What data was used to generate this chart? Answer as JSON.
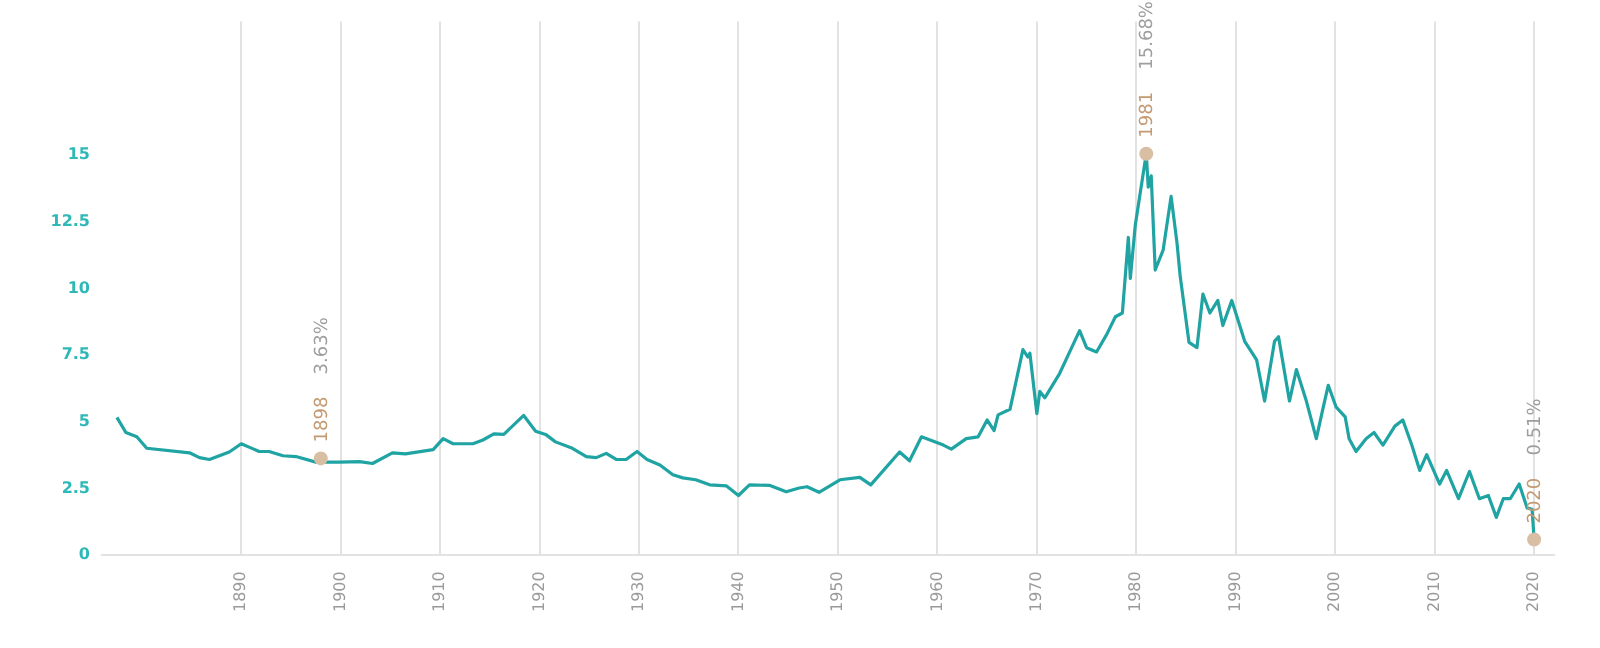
{
  "chart_data": {
    "type": "line",
    "color": "#1fa3a3",
    "marker": "none",
    "grid": "x",
    "x": [
      1877.5,
      1878.4,
      1879.5,
      1880.5,
      1884.8,
      1885.8,
      1886.8,
      1888.8,
      1890,
      1891.8,
      1892.8,
      1894.2,
      1895.5,
      1897.5,
      1899.9,
      1901.9,
      1903.2,
      1905.2,
      1906.5,
      1909.3,
      1910.3,
      1911.3,
      1913.3,
      1914.3,
      1915.4,
      1916.4,
      1918.4,
      1919.6,
      1920.6,
      1921.6,
      1923.3,
      1924.7,
      1925.7,
      1926.7,
      1927.7,
      1928.7,
      1929.8,
      1930.8,
      1932.1,
      1933.4,
      1934.4,
      1935.7,
      1937.1,
      1938.8,
      1940,
      1941.1,
      1943.1,
      1944.8,
      1946.1,
      1946.9,
      1948.1,
      1950.2,
      1952.2,
      1953.3,
      1956.2,
      1957.2,
      1958.4,
      1960.6,
      1961.4,
      1962.9,
      1964.1,
      1965,
      1965.7,
      1966.1,
      1967.3,
      1968.6,
      1969.1,
      1969.3,
      1970,
      1970.3,
      1970.8,
      1972.3,
      1973.3,
      1974.3,
      1975,
      1976,
      1977,
      1977.9,
      1978.6,
      1979.2,
      1979.4,
      1979.9,
      1981,
      1981.2,
      1981.5,
      1981.9,
      1982.7,
      1983.5,
      1984.1,
      1984.4,
      1985.3,
      1986.1,
      1986.7,
      1987.4,
      1988.2,
      1988.7,
      1989.6,
      1990,
      1990.9,
      1992.1,
      1992.9,
      1993.9,
      1994.3,
      1995.4,
      1996.1,
      1997.1,
      1998.1,
      1998.8,
      1999.3,
      2000.1,
      2001,
      2001.4,
      2002.1,
      2003.1,
      2003.9,
      2004.8,
      2006,
      2006.8,
      2007.7,
      2008.5,
      2009.2,
      2010.5,
      2011.2,
      2012.4,
      2013.5,
      2014.5,
      2015.4,
      2016.2,
      2016.9,
      2017.6,
      2018.5,
      2019.3,
      2019.8,
      2020
    ],
    "values": [
      5.17,
      4.6,
      4.44,
      4.01,
      3.84,
      3.66,
      3.59,
      3.87,
      4.18,
      3.89,
      3.89,
      3.73,
      3.7,
      3.49,
      3.49,
      3.51,
      3.44,
      3.84,
      3.8,
      3.96,
      4.37,
      4.18,
      4.18,
      4.32,
      4.55,
      4.53,
      5.24,
      4.65,
      4.53,
      4.25,
      4.01,
      3.7,
      3.66,
      3.82,
      3.59,
      3.59,
      3.89,
      3.59,
      3.38,
      3.02,
      2.9,
      2.83,
      2.64,
      2.6,
      2.24,
      2.64,
      2.62,
      2.38,
      2.52,
      2.57,
      2.36,
      2.83,
      2.92,
      2.64,
      3.87,
      3.54,
      4.44,
      4.13,
      3.98,
      4.37,
      4.44,
      5.07,
      4.67,
      5.26,
      5.47,
      7.71,
      7.43,
      7.57,
      5.31,
      6.14,
      5.9,
      6.82,
      7.62,
      8.42,
      7.78,
      7.62,
      8.26,
      8.94,
      9.08,
      11.91,
      10.38,
      12.38,
      15.05,
      13.8,
      14.22,
      10.69,
      11.44,
      13.45,
      11.68,
      10.5,
      7.98,
      7.78,
      9.79,
      9.08,
      9.55,
      8.61,
      9.55,
      9.08,
      8.02,
      7.32,
      5.78,
      8.02,
      8.19,
      5.78,
      6.96,
      5.78,
      4.37,
      5.55,
      6.37,
      5.55,
      5.19,
      4.37,
      3.89,
      4.37,
      4.6,
      4.13,
      4.84,
      5.07,
      4.13,
      3.18,
      3.77,
      2.67,
      3.18,
      2.12,
      3.14,
      2.12,
      2.24,
      1.42,
      2.12,
      2.12,
      2.67,
      1.77,
      1.72,
      0.59
    ],
    "xlim": [
      1876,
      2022
    ],
    "xticks": [
      1890,
      1900,
      1910,
      1920,
      1930,
      1940,
      1950,
      1960,
      1970,
      1980,
      1990,
      2000,
      2010,
      2020
    ],
    "ylim": [
      0,
      20
    ],
    "yticks": [
      0,
      2.5,
      5,
      7.5,
      10,
      12.5,
      15
    ],
    "annotations": [
      {
        "text": "1898",
        "x": 1898,
        "y": 3.63
      },
      "3.63%",
      {
        "text": "1981",
        "x": 1981,
        "y": 15.05
      },
      "15.68%",
      {
        "text": "2020",
        "x": 2020,
        "y": 0.59
      },
      "0.51%"
    ]
  }
}
